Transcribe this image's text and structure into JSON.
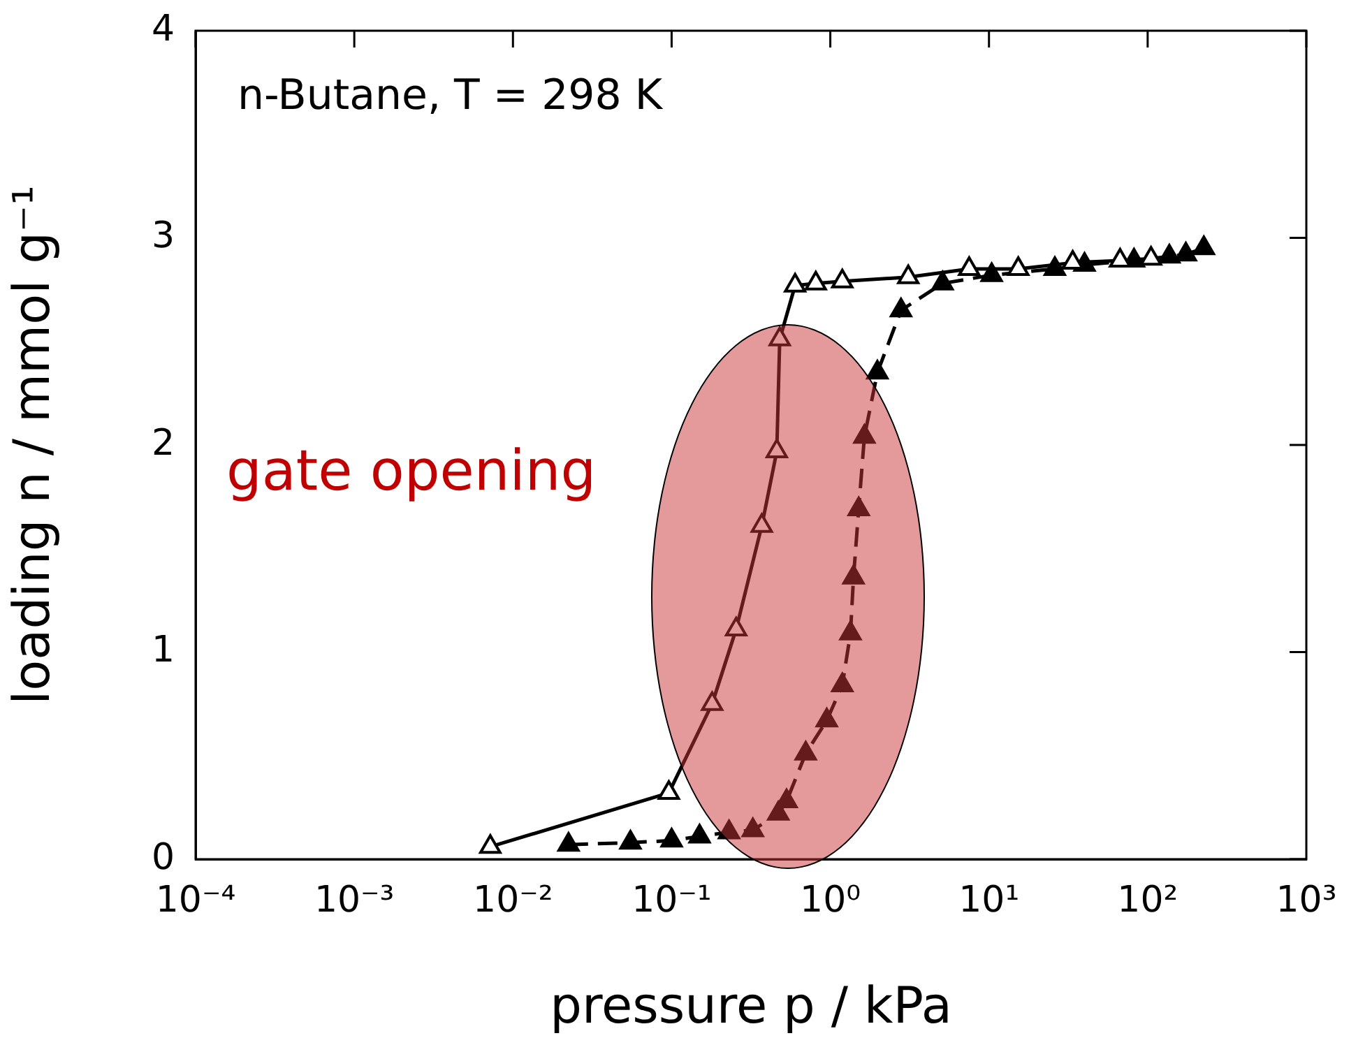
{
  "chart_data": {
    "type": "line",
    "xlabel": "pressure p / kPa",
    "ylabel": "loading n / mmol g⁻¹",
    "log": "x",
    "grid": false,
    "legend": false,
    "marker": "triangle",
    "xlim": [
      0.0001,
      1000
    ],
    "ylim": [
      0,
      4
    ],
    "xticks": [
      {
        "value": 0.0001,
        "label": "10⁻⁴"
      },
      {
        "value": 0.001,
        "label": "10⁻³"
      },
      {
        "value": 0.01,
        "label": "10⁻²"
      },
      {
        "value": 0.1,
        "label": "10⁻¹"
      },
      {
        "value": 1,
        "label": "10⁰"
      },
      {
        "value": 10,
        "label": "10¹"
      },
      {
        "value": 100,
        "label": "10²"
      },
      {
        "value": 1000,
        "label": "10³"
      }
    ],
    "yticks": [
      0,
      1,
      2,
      3,
      4
    ],
    "annotations": [
      "n-Butane, T = 298 K",
      "gate opening"
    ],
    "series": [
      {
        "color": "#000000",
        "line_style": "solid",
        "x": [
          0.0072,
          0.096,
          0.18,
          0.255,
          0.37,
          0.46,
          0.48,
          0.6,
          0.81,
          1.19,
          3.1,
          7.5,
          15.3,
          33.7,
          67,
          105
        ],
        "values": [
          0.06,
          0.32,
          0.75,
          1.11,
          1.61,
          1.97,
          2.51,
          2.77,
          2.78,
          2.79,
          2.81,
          2.85,
          2.85,
          2.88,
          2.89,
          2.9
        ]
      },
      {
        "color": "#000000",
        "line_style": "dashed",
        "x": [
          0.0224,
          0.055,
          0.1,
          0.15,
          0.23,
          0.325,
          0.47,
          0.53,
          0.7,
          0.95,
          1.19,
          1.34,
          1.4,
          1.51,
          1.64,
          1.98,
          2.79,
          5.1,
          10.4,
          26,
          40,
          82,
          137,
          174,
          226
        ],
        "values": [
          0.07,
          0.08,
          0.09,
          0.11,
          0.13,
          0.14,
          0.22,
          0.28,
          0.51,
          0.67,
          0.84,
          1.09,
          1.36,
          1.69,
          2.04,
          2.35,
          2.65,
          2.78,
          2.82,
          2.85,
          2.87,
          2.89,
          2.91,
          2.92,
          2.95
        ]
      }
    ]
  }
}
